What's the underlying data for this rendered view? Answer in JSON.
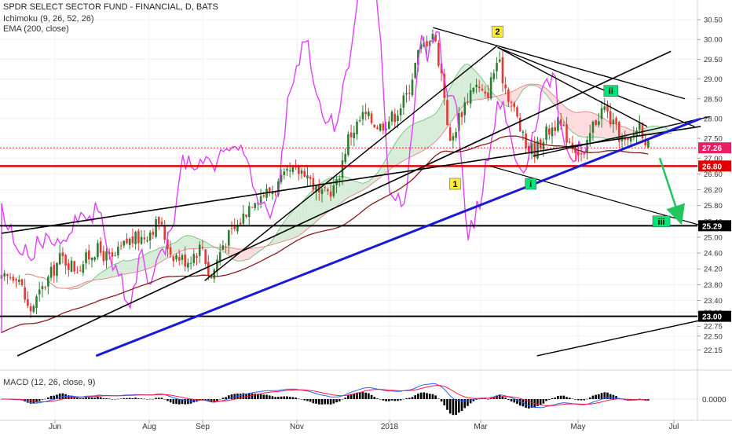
{
  "header": {
    "title": "SPDR SELECT SECTOR FUND - FINANCIAL, D, BATS",
    "ichimoku": "Ichimoku (9, 26, 52, 26)",
    "ema": "EMA (200, close)",
    "macd": "MACD (12, 26, close, 9)"
  },
  "colors": {
    "up": "#2e7d32",
    "down": "#e53935",
    "conversion": "#e040fb",
    "ema": "#8b1a1a",
    "cloud_bull": "#c8e6c9",
    "cloud_bear": "#ffcdd2",
    "trendline": "#000000",
    "blue_trend": "#1a1ad6",
    "support_red": "#e00000",
    "macd_line": "#2962ff",
    "signal_line": "#ff1744",
    "price_label_bg": "#e91e63",
    "wave_yellow": "#ffeb3b",
    "wave_green": "#00e676"
  },
  "chart_data": {
    "type": "candlestick",
    "symbol": "SPDR SELECT SECTOR FUND - FINANCIAL",
    "interval": "D",
    "source": "BATS",
    "x_axis_labels": [
      "Jun",
      "Aug",
      "Sep",
      "Nov",
      "2018",
      "Mar",
      "May",
      "Jul"
    ],
    "y_axis_ticks": [
      "30.50",
      "30.00",
      "29.50",
      "29.00",
      "28.50",
      "28.00",
      "27.50",
      "27.00",
      "26.60",
      "26.20",
      "25.80",
      "25.40",
      "25.00",
      "24.60",
      "24.20",
      "23.80",
      "23.40",
      "23.10",
      "22.75",
      "22.50",
      "22.15"
    ],
    "y_range": [
      21.9,
      30.7
    ],
    "price_markers": [
      {
        "value": "27.26",
        "style": "current"
      },
      {
        "value": "26.80",
        "style": "red-line"
      },
      {
        "value": "25.29",
        "style": "black-line"
      },
      {
        "value": "23.00",
        "style": "black-line"
      }
    ],
    "wave_labels": [
      {
        "label": "1",
        "style": "yellow"
      },
      {
        "label": "2",
        "style": "yellow"
      },
      {
        "label": "i",
        "style": "green"
      },
      {
        "label": "ii",
        "style": "green"
      },
      {
        "label": "iii",
        "style": "green"
      }
    ],
    "macd": {
      "zero_label": "0.0000"
    },
    "approx_close_path": [
      {
        "t": 0,
        "close": 23.9
      },
      {
        "t": 20,
        "close": 24.1
      },
      {
        "t": 35,
        "close": 23.1
      },
      {
        "t": 55,
        "close": 23.8
      },
      {
        "t": 75,
        "close": 24.5
      },
      {
        "t": 95,
        "close": 24.2
      },
      {
        "t": 120,
        "close": 24.7
      },
      {
        "t": 140,
        "close": 24.4
      },
      {
        "t": 160,
        "close": 24.9
      },
      {
        "t": 180,
        "close": 25.0
      },
      {
        "t": 200,
        "close": 25.4
      },
      {
        "t": 215,
        "close": 24.6
      },
      {
        "t": 235,
        "close": 24.4
      },
      {
        "t": 255,
        "close": 24.8
      },
      {
        "t": 265,
        "close": 23.9
      },
      {
        "t": 280,
        "close": 24.8
      },
      {
        "t": 300,
        "close": 25.3
      },
      {
        "t": 320,
        "close": 26.0
      },
      {
        "t": 345,
        "close": 26.2
      },
      {
        "t": 365,
        "close": 26.6
      },
      {
        "t": 385,
        "close": 26.7
      },
      {
        "t": 405,
        "close": 26.0
      },
      {
        "t": 425,
        "close": 26.3
      },
      {
        "t": 440,
        "close": 27.5
      },
      {
        "t": 460,
        "close": 28.1
      },
      {
        "t": 480,
        "close": 27.8
      },
      {
        "t": 500,
        "close": 28.1
      },
      {
        "t": 515,
        "close": 28.6
      },
      {
        "t": 530,
        "close": 29.7
      },
      {
        "t": 548,
        "close": 30.2
      },
      {
        "t": 560,
        "close": 29.0
      },
      {
        "t": 570,
        "close": 27.3
      },
      {
        "t": 580,
        "close": 28.0
      },
      {
        "t": 600,
        "close": 28.9
      },
      {
        "t": 615,
        "close": 28.5
      },
      {
        "t": 630,
        "close": 29.5
      },
      {
        "t": 640,
        "close": 28.8
      },
      {
        "t": 655,
        "close": 28.0
      },
      {
        "t": 665,
        "close": 27.3
      },
      {
        "t": 678,
        "close": 27.2
      },
      {
        "t": 690,
        "close": 27.6
      },
      {
        "t": 705,
        "close": 27.9
      },
      {
        "t": 720,
        "close": 27.5
      },
      {
        "t": 740,
        "close": 27.0
      },
      {
        "t": 750,
        "close": 27.8
      },
      {
        "t": 765,
        "close": 28.3
      },
      {
        "t": 780,
        "close": 27.7
      },
      {
        "t": 795,
        "close": 27.3
      },
      {
        "t": 810,
        "close": 27.9
      },
      {
        "t": 822,
        "close": 27.26
      }
    ]
  }
}
